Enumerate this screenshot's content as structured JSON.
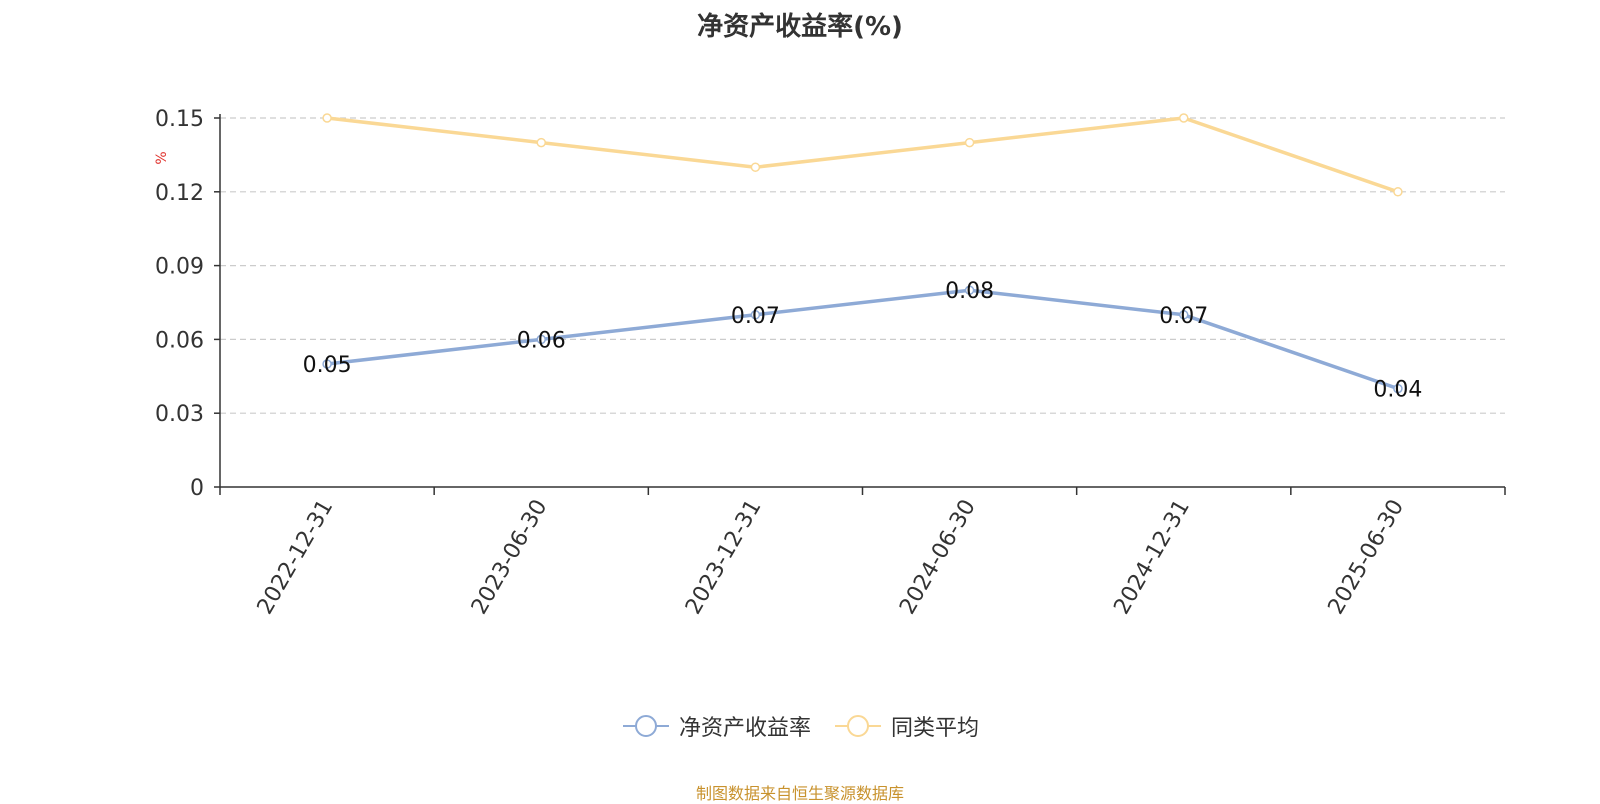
{
  "title": "净资产收益率(%)",
  "unit_label": "%",
  "source_note": "制图数据来自恒生聚源数据库",
  "colors": {
    "series_roe": "#8eaad6",
    "series_avg": "#fad895",
    "axis": "#333333",
    "grid": "#cccccc",
    "unit": "#e0342f"
  },
  "chart_data": {
    "type": "line",
    "title": "净资产收益率(%)",
    "ylabel": "%",
    "categories": [
      "2022-12-31",
      "2023-06-30",
      "2023-12-31",
      "2024-06-30",
      "2024-12-31",
      "2025-06-30"
    ],
    "ylim": [
      0,
      0.15
    ],
    "yticks": [
      "0",
      "0.03",
      "0.06",
      "0.09",
      "0.12",
      "0.15"
    ],
    "grid": true,
    "legend_position": "bottom-center",
    "series": [
      {
        "name": "净资产收益率",
        "values": [
          0.05,
          0.06,
          0.07,
          0.08,
          0.07,
          0.04
        ],
        "data_labels": [
          "0.05",
          "0.06",
          "0.07",
          "0.08",
          "0.07",
          "0.04"
        ]
      },
      {
        "name": "同类平均",
        "values": [
          0.15,
          0.14,
          0.13,
          0.14,
          0.15,
          0.12
        ]
      }
    ]
  }
}
